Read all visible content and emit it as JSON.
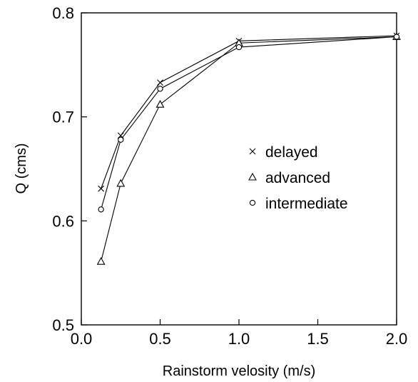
{
  "chart_data": {
    "type": "line",
    "title": "",
    "xlabel": "Rainstorm velosity  (m/s)",
    "ylabel": "Q (cms)",
    "xlim": [
      0.0,
      2.0
    ],
    "ylim": [
      0.5,
      0.8
    ],
    "xticks": [
      0.0,
      0.5,
      1.0,
      1.5,
      2.0
    ],
    "xtick_labels": [
      "0.0",
      "0.5",
      "1.0",
      "1.5",
      "2.0"
    ],
    "yticks": [
      0.5,
      0.6,
      0.7,
      0.8
    ],
    "ytick_labels": [
      "0.5",
      "0.6",
      "0.7",
      "0.8"
    ],
    "grid": false,
    "legend_position": "center-right",
    "x": [
      0.125,
      0.25,
      0.5,
      1.0,
      2.0
    ],
    "series": [
      {
        "name": "delayed",
        "marker": "x",
        "values": [
          0.631,
          0.682,
          0.733,
          0.773,
          0.778
        ]
      },
      {
        "name": "advanced",
        "marker": "triangle",
        "values": [
          0.561,
          0.636,
          0.712,
          0.771,
          0.777
        ]
      },
      {
        "name": "intermediate",
        "marker": "circle",
        "values": [
          0.611,
          0.678,
          0.727,
          0.767,
          0.777
        ]
      }
    ]
  }
}
